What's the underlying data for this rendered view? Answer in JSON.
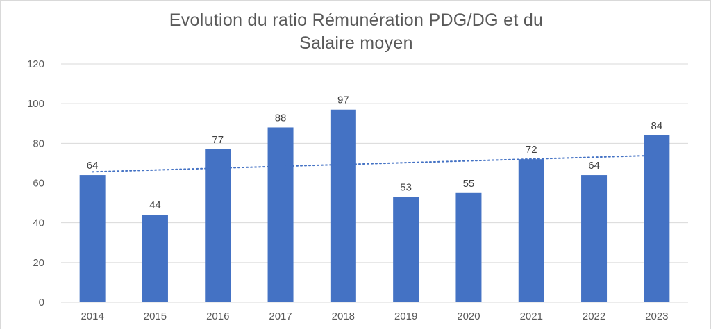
{
  "chart_data": {
    "type": "bar",
    "title_lines": [
      "Evolution du ratio Rémunération PDG/DG et du",
      "Salaire moyen"
    ],
    "categories": [
      "2014",
      "2015",
      "2016",
      "2017",
      "2018",
      "2019",
      "2020",
      "2021",
      "2022",
      "2023"
    ],
    "values": [
      64,
      44,
      77,
      88,
      97,
      53,
      55,
      72,
      64,
      84
    ],
    "trendline": {
      "type": "linear",
      "style": "dotted"
    },
    "ylim": [
      0,
      120
    ],
    "yticks": [
      0,
      20,
      40,
      60,
      80,
      100,
      120
    ],
    "grid": true,
    "legend": "none",
    "colors": {
      "bar": "#4472c4",
      "trend": "#4472c4",
      "grid": "#d9d9d9"
    }
  }
}
